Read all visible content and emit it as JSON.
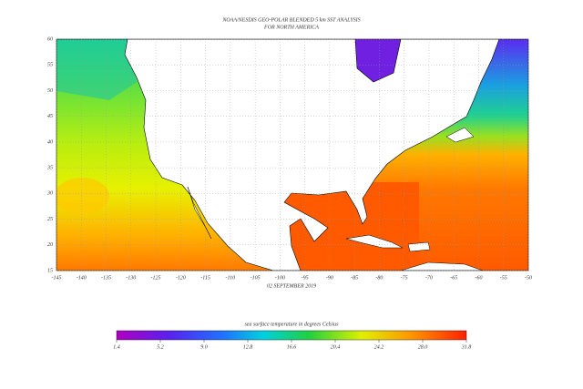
{
  "header": {
    "title": "NOAA/NESDIS GEO-POLAR BLENDED 5 km SST ANALYSIS",
    "subtitle": "FOR NORTH AMERICA"
  },
  "map": {
    "date": "02 SEPTEMBER 2019",
    "lat_ticks": [
      60,
      55,
      50,
      45,
      40,
      35,
      30,
      25,
      20,
      15
    ],
    "lon_ticks": [
      -145,
      -140,
      -135,
      -130,
      -125,
      -120,
      -115,
      -110,
      -105,
      -100,
      -95,
      -90,
      -85,
      -80,
      -75,
      -70,
      -65,
      -60,
      -55,
      -50
    ],
    "colorbar": {
      "label": "sea surface temperature in degrees Celsius",
      "ticks": [
        1.4,
        5.2,
        {
          "value": 9,
          "label": "9.0"
        },
        12.8,
        16.6,
        20.4,
        24.2,
        {
          "value": 28,
          "label": "28.0"
        },
        31.8
      ]
    }
  }
}
